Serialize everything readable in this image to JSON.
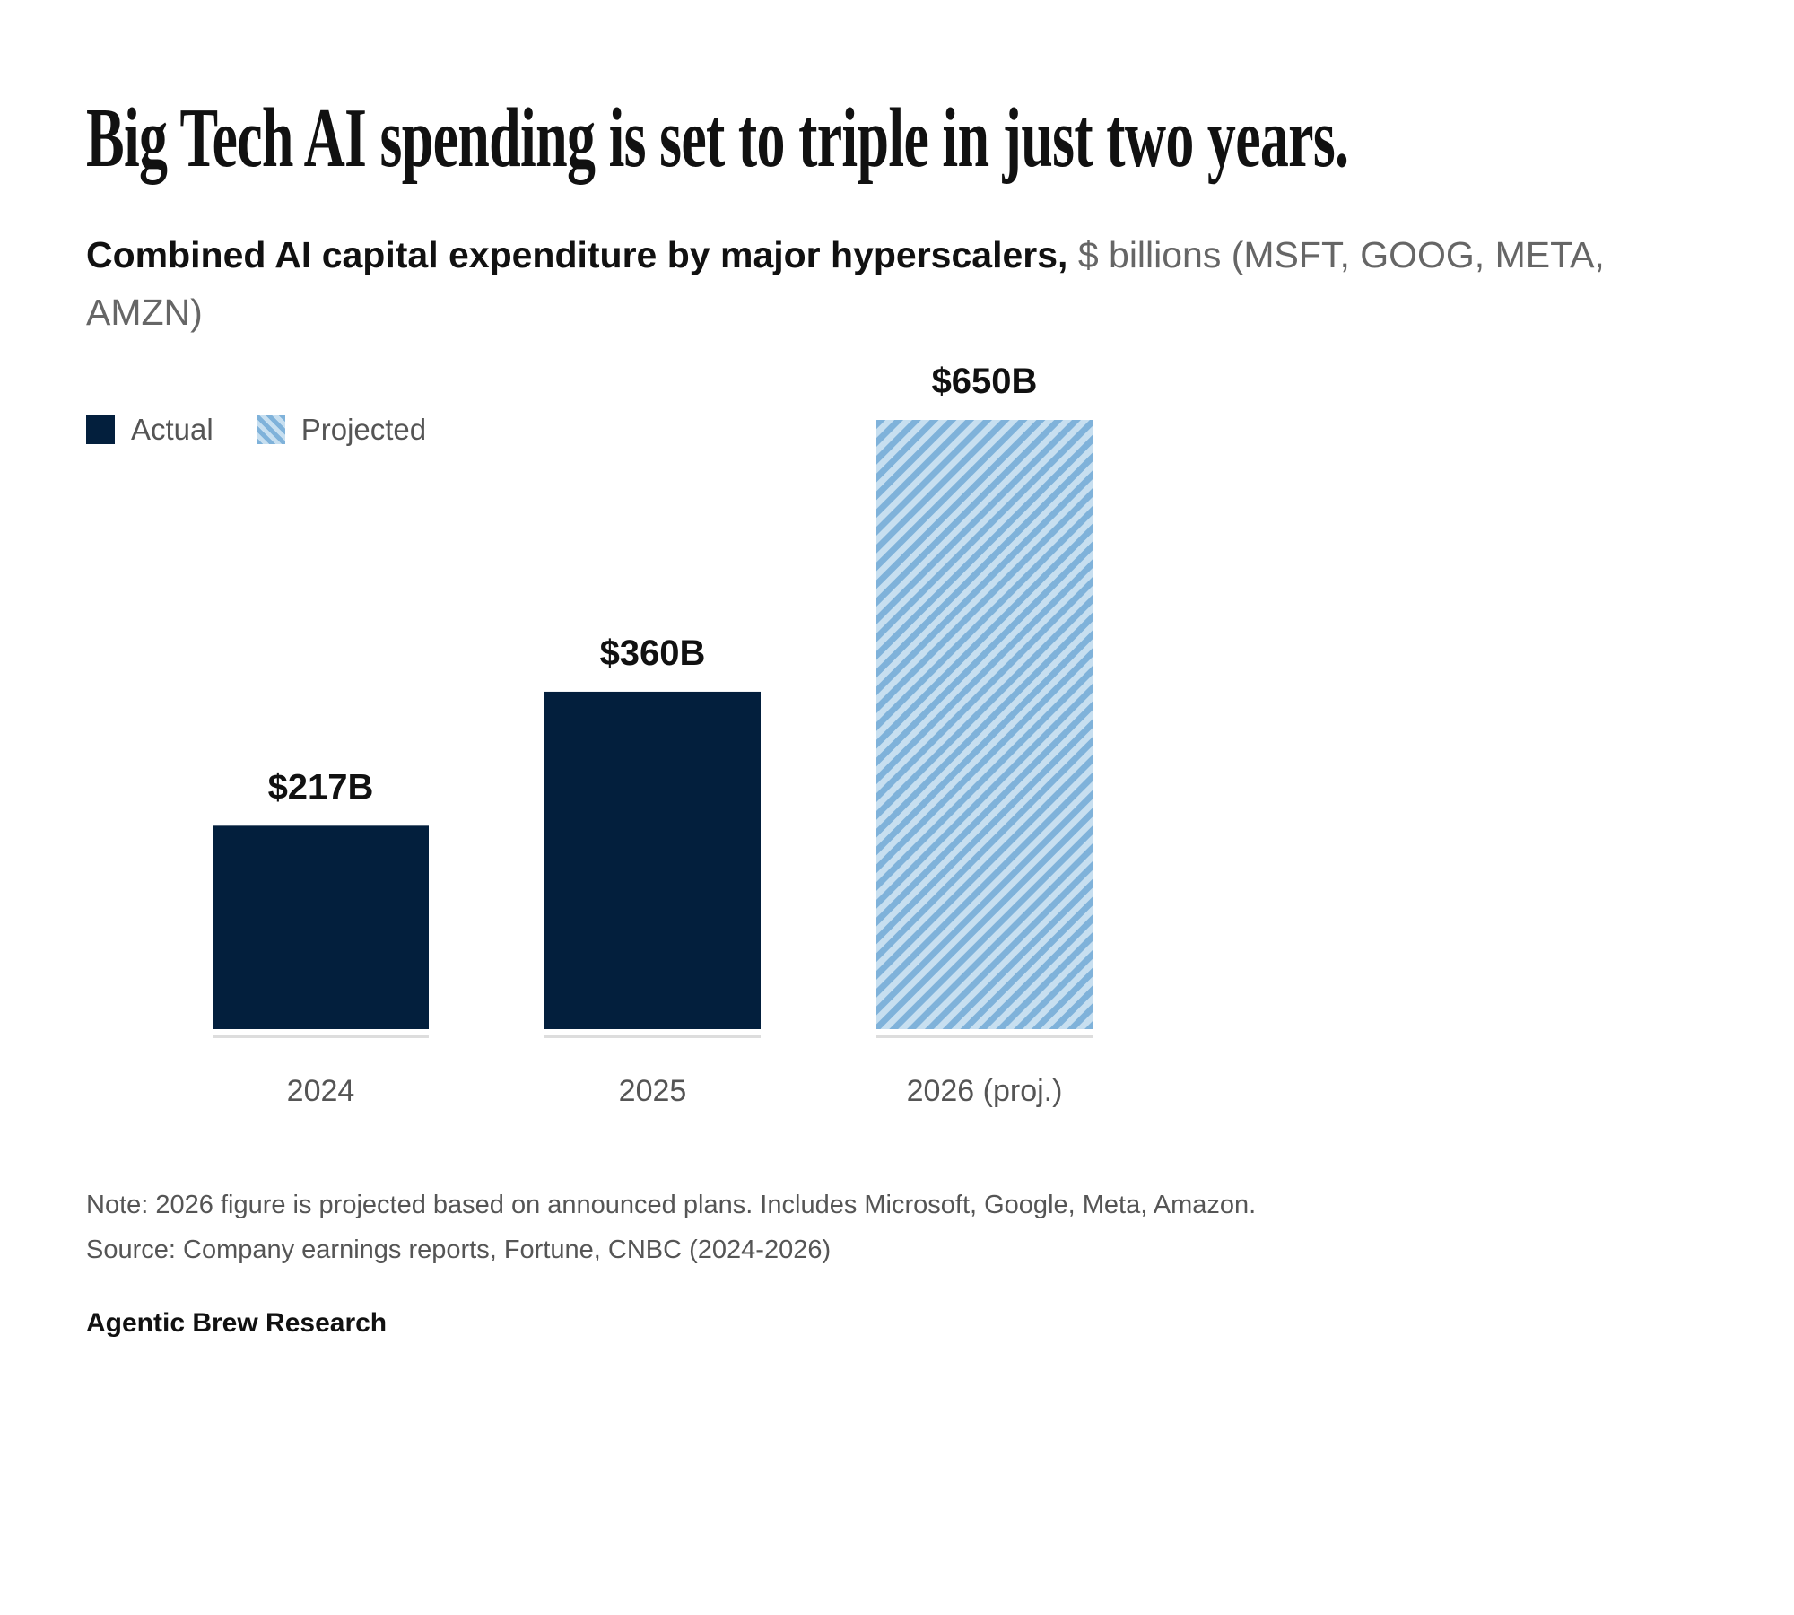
{
  "title": "Big Tech AI spending is set to triple in just two years.",
  "subtitle": {
    "bold": "Combined AI capital expenditure by major hyperscalers,",
    "rest": " $ billions (MSFT, GOOG, META, AMZN)"
  },
  "legend": {
    "actual": "Actual",
    "projected": "Projected"
  },
  "colors": {
    "actual": "#031f3d",
    "projected_dark": "#7fb2da",
    "projected_light": "#c7dff0",
    "baseline": "#dddddd"
  },
  "chart_data": {
    "type": "bar",
    "categories": [
      "2024",
      "2025",
      "2026 (proj.)"
    ],
    "values": [
      217,
      360,
      650
    ],
    "value_labels": [
      "$217B",
      "$360B",
      "$650B"
    ],
    "kinds": [
      "actual",
      "actual",
      "projected"
    ],
    "ylabel": "$ billions",
    "ylim": [
      0,
      650
    ],
    "grid": false,
    "legend_placement": "top-left"
  },
  "note": "Note: 2026 figure is projected based on announced plans. Includes Microsoft, Google, Meta, Amazon.",
  "source": "Source: Company earnings reports, Fortune, CNBC (2024-2026)",
  "brand": "Agentic Brew Research"
}
